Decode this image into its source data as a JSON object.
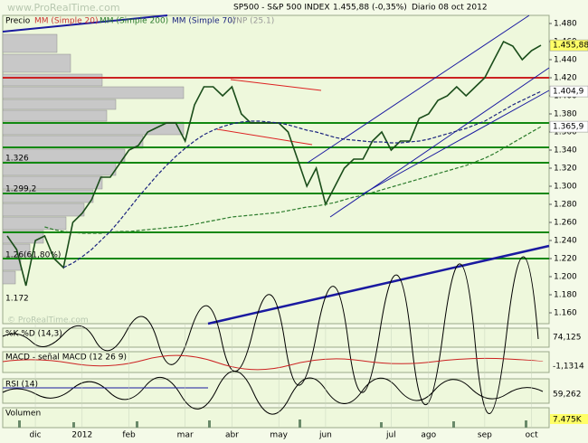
{
  "chart_data": {
    "type": "line",
    "watermark": "www.ProRealTime.com",
    "footer_watermark": "© ProRealTime.com",
    "title": "SP500 - S&P 500 INDEX",
    "last_change": "1.455,88 (-0,35%)",
    "period": "Diario  08 oct 2012",
    "header_labels": [
      "Precio",
      "MM (Simple 20)",
      "MM (Simple 200)",
      "MM (Simple 70)",
      "VNP (25.1)"
    ],
    "categories": [
      null,
      null,
      null,
      "dic",
      null,
      null,
      null,
      null,
      "2012",
      null,
      null,
      null,
      null,
      "feb",
      null,
      null,
      null,
      null,
      null,
      "mar",
      null,
      null,
      null,
      null,
      "abr",
      null,
      null,
      null,
      null,
      "may",
      null,
      null,
      null,
      null,
      "jun",
      null,
      null,
      null,
      null,
      null,
      null,
      "jul",
      null,
      null,
      null,
      "ago",
      null,
      null,
      null,
      null,
      null,
      "sep",
      null,
      null,
      null,
      null,
      "oct",
      null
    ],
    "series": [
      {
        "name": "Precio",
        "color": "#1a4d1a",
        "values": [
          1.245,
          1.23,
          1.19,
          1.24,
          1.245,
          1.22,
          1.21,
          1.26,
          1.27,
          1.285,
          1.31,
          1.31,
          1.325,
          1.34,
          1.345,
          1.36,
          1.365,
          1.37,
          1.37,
          1.35,
          1.39,
          1.41,
          1.41,
          1.4,
          1.41,
          1.38,
          1.37,
          1.37,
          1.37,
          1.37,
          1.36,
          1.33,
          1.3,
          1.32,
          1.28,
          1.3,
          1.32,
          1.33,
          1.33,
          1.35,
          1.36,
          1.34,
          1.35,
          1.35,
          1.375,
          1.38,
          1.395,
          1.4,
          1.41,
          1.4,
          1.41,
          1.42,
          1.44,
          1.46,
          1.455,
          1.44,
          1.45,
          1.45588
        ]
      },
      {
        "name": "MM (Simple 200)",
        "color": "#2e7d2e",
        "values": [
          null,
          null,
          null,
          null,
          1.255,
          1.252,
          1.25,
          1.249,
          1.248,
          1.248,
          1.248,
          1.249,
          1.25,
          1.25,
          1.251,
          1.252,
          1.253,
          1.254,
          1.255,
          1.256,
          1.258,
          1.26,
          1.262,
          1.264,
          1.266,
          1.267,
          1.268,
          1.269,
          1.27,
          1.271,
          1.273,
          1.275,
          1.277,
          1.278,
          1.28,
          1.282,
          1.285,
          1.288,
          1.29,
          1.293,
          1.296,
          1.299,
          1.302,
          1.305,
          1.308,
          1.311,
          1.314,
          1.317,
          1.32,
          1.323,
          1.327,
          1.331,
          1.336,
          1.342,
          1.348,
          1.354,
          1.36,
          1.3659
        ]
      },
      {
        "name": "MM (Simple 70)",
        "color": "#1a237e",
        "values": [
          null,
          null,
          null,
          null,
          null,
          null,
          1.21,
          1.215,
          1.222,
          1.23,
          1.24,
          1.25,
          1.262,
          1.275,
          1.288,
          1.3,
          1.312,
          1.323,
          1.333,
          1.342,
          1.35,
          1.357,
          1.362,
          1.366,
          1.369,
          1.371,
          1.372,
          1.372,
          1.371,
          1.37,
          1.368,
          1.365,
          1.362,
          1.36,
          1.357,
          1.354,
          1.352,
          1.351,
          1.35,
          1.349,
          1.349,
          1.348,
          1.348,
          1.349,
          1.35,
          1.352,
          1.355,
          1.358,
          1.361,
          1.364,
          1.368,
          1.372,
          1.378,
          1.384,
          1.39,
          1.395,
          1.4,
          1.4049
        ]
      }
    ],
    "ylim": [
      1.148,
      1.488
    ],
    "yticks": [
      {
        "value": 1.48,
        "label": "1.480"
      },
      {
        "value": 1.46,
        "label": "1.460"
      },
      {
        "value": 1.44,
        "label": "1.440"
      },
      {
        "value": 1.42,
        "label": "1.420"
      },
      {
        "value": 1.4,
        "label": "1.400"
      },
      {
        "value": 1.38,
        "label": "1.380"
      },
      {
        "value": 1.36,
        "label": "1.360"
      },
      {
        "value": 1.34,
        "label": "1.340"
      },
      {
        "value": 1.32,
        "label": "1.320"
      },
      {
        "value": 1.3,
        "label": "1.300"
      },
      {
        "value": 1.28,
        "label": "1.280"
      },
      {
        "value": 1.26,
        "label": "1.260"
      },
      {
        "value": 1.24,
        "label": "1.240"
      },
      {
        "value": 1.22,
        "label": "1.220"
      },
      {
        "value": 1.2,
        "label": "1.200"
      },
      {
        "value": 1.18,
        "label": "1.180"
      },
      {
        "value": 1.16,
        "label": "1.160"
      }
    ],
    "markers": [
      {
        "value": 1.45588,
        "label": "1.455,88",
        "color": "#ffff66"
      },
      {
        "value": 1.4049,
        "label": "1.404,9",
        "color": "#ffffff"
      },
      {
        "value": 1.3659,
        "label": "1.365,9",
        "color": "#ffffff"
      }
    ],
    "levels": [
      {
        "value": 1.42,
        "color": "#cc2222"
      },
      {
        "value": 1.37,
        "color": "#118811"
      },
      {
        "value": 1.343,
        "color": "#118811"
      },
      {
        "value": 1.326,
        "color": "#118811"
      },
      {
        "value": 1.292,
        "color": "#118811"
      },
      {
        "value": 1.249,
        "color": "#118811"
      },
      {
        "value": 1.22,
        "color": "#118811"
      }
    ],
    "level_labels": [
      "1.326",
      "1.299,2",
      "1.26(61,80%)",
      "1.172"
    ],
    "panels": [
      {
        "name": "%K %D (14,3)",
        "last": "74,125"
      },
      {
        "name": "MACD - señal MACD (12 26 9)",
        "last": "-1,1314"
      },
      {
        "name": "RSI (14)",
        "last": "59,262"
      },
      {
        "name": "Volumen",
        "last": "7.475K"
      }
    ]
  }
}
